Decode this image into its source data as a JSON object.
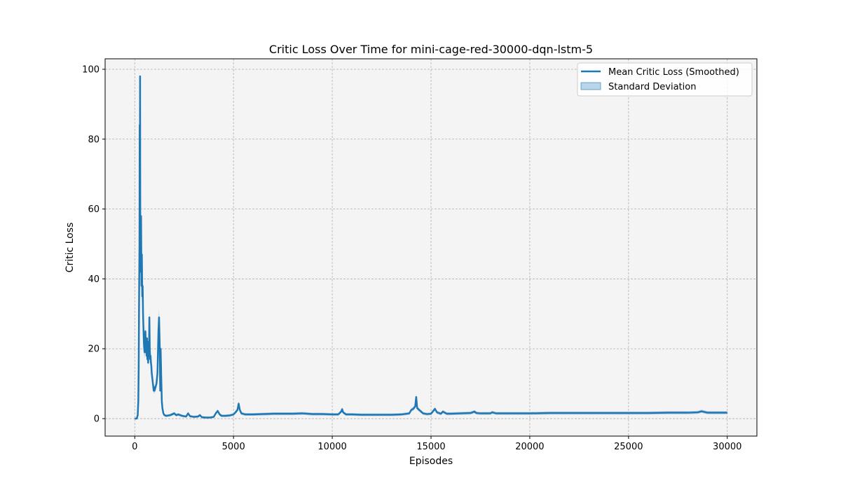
{
  "chart_data": {
    "type": "line",
    "title": "Critic Loss Over Time for mini-cage-red-30000-dqn-lstm-5",
    "xlabel": "Episodes",
    "ylabel": "Critic Loss",
    "xlim": [
      -1500,
      31500
    ],
    "ylim": [
      -5,
      103
    ],
    "xticks": [
      0,
      5000,
      10000,
      15000,
      20000,
      25000,
      30000
    ],
    "yticks": [
      0,
      20,
      40,
      60,
      80,
      100
    ],
    "grid": true,
    "legend_position": "top-right",
    "colors": {
      "line": "#1f77b4",
      "band": "#1f77b4",
      "plot_bg": "#f4f4f4",
      "grid": "#b0b0b0"
    },
    "series": [
      {
        "name": "Mean Critic Loss (Smoothed)",
        "x": [
          0,
          100,
          150,
          180,
          200,
          220,
          240,
          250,
          260,
          270,
          280,
          290,
          300,
          320,
          340,
          360,
          380,
          400,
          420,
          440,
          460,
          480,
          500,
          520,
          540,
          560,
          580,
          600,
          620,
          640,
          660,
          680,
          700,
          720,
          740,
          760,
          780,
          800,
          820,
          840,
          860,
          880,
          900,
          920,
          940,
          960,
          980,
          1000,
          1050,
          1100,
          1150,
          1200,
          1230,
          1260,
          1290,
          1310,
          1340,
          1370,
          1400,
          1450,
          1500,
          1600,
          1800,
          2000,
          2100,
          2200,
          2400,
          2600,
          2700,
          2800,
          3000,
          3200,
          3300,
          3400,
          3600,
          3800,
          4000,
          4100,
          4200,
          4300,
          4400,
          4600,
          4800,
          5000,
          5100,
          5200,
          5260,
          5320,
          5400,
          5600,
          6000,
          6500,
          7000,
          7500,
          8000,
          8500,
          9000,
          9500,
          10000,
          10300,
          10450,
          10500,
          10550,
          10700,
          11000,
          11500,
          12000,
          12500,
          13000,
          13500,
          13900,
          14000,
          14100,
          14200,
          14250,
          14300,
          14400,
          14600,
          14800,
          15000,
          15200,
          15300,
          15500,
          15600,
          15800,
          16000,
          16500,
          17000,
          17200,
          17300,
          17500,
          18000,
          18100,
          18300,
          19000,
          20000,
          21000,
          22000,
          23000,
          24000,
          25000,
          26000,
          27000,
          28000,
          28500,
          28700,
          29000,
          30000
        ],
        "values": [
          0,
          0,
          1,
          5,
          15,
          35,
          50,
          84,
          60,
          98,
          55,
          45,
          42,
          58,
          38,
          47,
          35,
          38,
          30,
          26,
          22,
          20,
          19,
          21,
          25,
          19,
          22,
          18,
          23,
          17,
          20,
          16,
          22,
          18,
          29,
          20,
          17,
          18,
          16,
          15,
          13,
          12,
          11,
          10,
          9,
          8,
          9,
          8,
          9,
          10,
          13,
          25,
          29,
          22,
          8,
          20,
          12,
          5,
          3,
          1.5,
          1,
          0.8,
          1,
          1.5,
          1,
          1.2,
          0.8,
          0.6,
          1.5,
          0.7,
          0.5,
          0.6,
          1,
          0.4,
          0.3,
          0.3,
          0.5,
          1.5,
          2.2,
          1.2,
          0.8,
          0.8,
          0.9,
          1.2,
          1.8,
          2.5,
          4.3,
          2.5,
          1.5,
          1.2,
          1.2,
          1.3,
          1.4,
          1.4,
          1.4,
          1.5,
          1.3,
          1.3,
          1.2,
          1.2,
          2,
          2.7,
          1.8,
          1.2,
          1.2,
          1.1,
          1.1,
          1.1,
          1.1,
          1.2,
          1.5,
          2.5,
          2.8,
          3.5,
          6.2,
          3,
          2.5,
          1.5,
          1.3,
          1.4,
          2.8,
          1.8,
          1.4,
          2,
          1.4,
          1.4,
          1.5,
          1.6,
          2,
          1.6,
          1.5,
          1.5,
          1.8,
          1.5,
          1.5,
          1.5,
          1.6,
          1.6,
          1.6,
          1.6,
          1.6,
          1.6,
          1.7,
          1.7,
          1.8,
          2.1,
          1.7,
          1.7
        ]
      },
      {
        "name": "Standard Deviation",
        "type": "band"
      }
    ]
  }
}
